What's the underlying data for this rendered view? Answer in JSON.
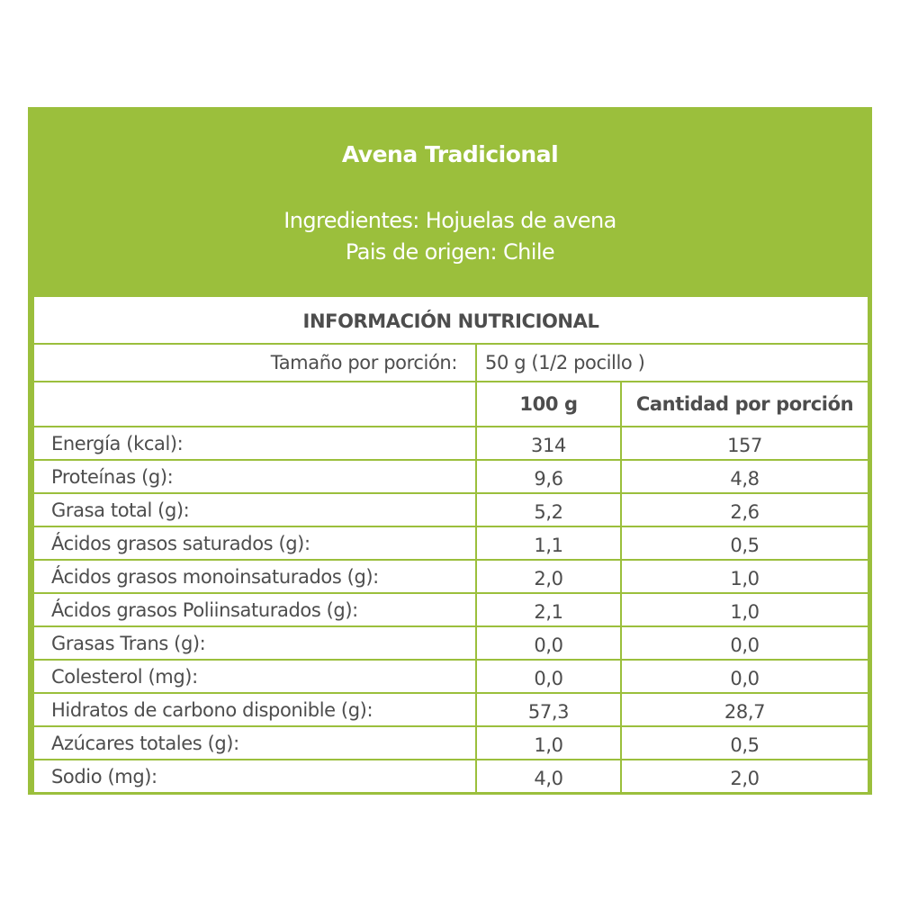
{
  "product": {
    "title": "Avena Tradicional",
    "ingredients": "Ingredientes: Hojuelas de avena",
    "origin": "Pais de origen: Chile"
  },
  "table": {
    "heading": "INFORMACIÓN NUTRICIONAL",
    "portion_label": "Tamaño por porción:",
    "portion_value": "50 g (1/2 pocillo )",
    "col_100g": "100 g",
    "col_portion": "Cantidad por porción",
    "rows": [
      {
        "name": "Energía (kcal):",
        "per100": "314",
        "perPortion": "157"
      },
      {
        "name": "Proteínas (g):",
        "per100": "9,6",
        "perPortion": "4,8"
      },
      {
        "name": "Grasa total (g):",
        "per100": "5,2",
        "perPortion": "2,6"
      },
      {
        "name": "Ácidos grasos saturados (g):",
        "per100": "1,1",
        "perPortion": "0,5"
      },
      {
        "name": "Ácidos grasos monoinsaturados (g):",
        "per100": "2,0",
        "perPortion": "1,0"
      },
      {
        "name": "Ácidos grasos Poliinsaturados (g):",
        "per100": "2,1",
        "perPortion": "1,0"
      },
      {
        "name": "Grasas Trans (g):",
        "per100": "0,0",
        "perPortion": "0,0"
      },
      {
        "name": "Colesterol (mg):",
        "per100": "0,0",
        "perPortion": "0,0"
      },
      {
        "name": "Hidratos de carbono disponible (g):",
        "per100": "57,3",
        "perPortion": "28,7"
      },
      {
        "name": "Azúcares totales (g):",
        "per100": "1,0",
        "perPortion": "0,5"
      },
      {
        "name": "Sodio (mg):",
        "per100": "4,0",
        "perPortion": "2,0"
      }
    ]
  },
  "colors": {
    "accent": "#9bbf3c",
    "text": "#4d4d4d"
  }
}
